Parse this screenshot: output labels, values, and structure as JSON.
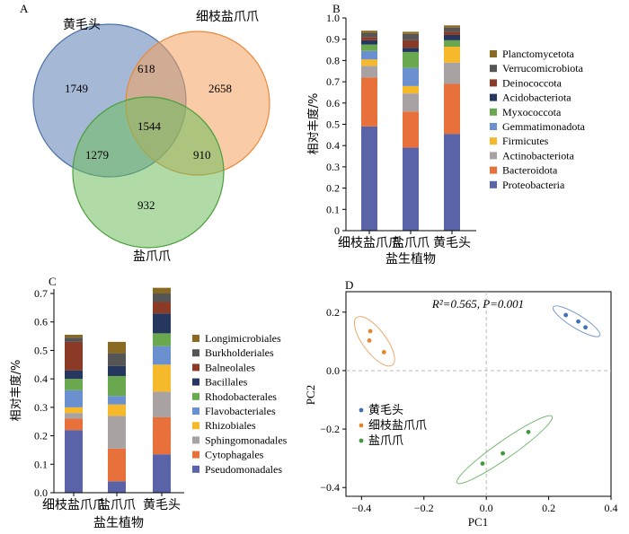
{
  "chart_data": [
    {
      "panel": "A",
      "type": "venn",
      "sets": [
        "黄毛头",
        "细枝盐爪爪",
        "盐爪爪"
      ],
      "colors": [
        "#5b7fb4",
        "#f4a35e",
        "#6fbe5c"
      ],
      "regions": [
        {
          "key": "huang_only",
          "value": "1749"
        },
        {
          "key": "xizhi_only",
          "value": "2658"
        },
        {
          "key": "yan_only",
          "value": "932"
        },
        {
          "key": "huang_xizhi",
          "value": "618"
        },
        {
          "key": "huang_yan",
          "value": "1279"
        },
        {
          "key": "xizhi_yan",
          "value": "910"
        },
        {
          "key": "all",
          "value": "1544"
        }
      ]
    },
    {
      "panel": "B",
      "type": "bar",
      "stacked": true,
      "categories": [
        "细枝盐爪爪",
        "盐爪爪",
        "黄毛头"
      ],
      "xlabel": "盐生植物",
      "ylabel": "相对丰度/%",
      "ylim": [
        0,
        1.0
      ],
      "yticks": [
        "0",
        "0.1",
        "0.2",
        "0.3",
        "0.4",
        "0.5",
        "0.6",
        "0.7",
        "0.8",
        "0.9",
        "1.0"
      ],
      "legend_position": "right",
      "series": [
        {
          "name": "Proteobacteria",
          "color": "#5a62a8",
          "values": [
            0.49,
            0.39,
            0.455
          ]
        },
        {
          "name": "Bacteroidota",
          "color": "#e8703a",
          "values": [
            0.23,
            0.17,
            0.235
          ]
        },
        {
          "name": "Actinobacteriota",
          "color": "#a8a2a2",
          "values": [
            0.055,
            0.085,
            0.1
          ]
        },
        {
          "name": "Firmicutes",
          "color": "#f6b92b",
          "values": [
            0.03,
            0.035,
            0.075
          ]
        },
        {
          "name": "Gemmatimonadota",
          "color": "#6a90cf",
          "values": [
            0.04,
            0.085,
            0.0
          ]
        },
        {
          "name": "Myxococcota",
          "color": "#6aa84f",
          "values": [
            0.03,
            0.075,
            0.03
          ]
        },
        {
          "name": "Acidobacteriota",
          "color": "#25375f",
          "values": [
            0.02,
            0.02,
            0.025
          ]
        },
        {
          "name": "Deinococcota",
          "color": "#8b3a26",
          "values": [
            0.015,
            0.035,
            0.015
          ]
        },
        {
          "name": "Verrucomicrobiota",
          "color": "#555555",
          "values": [
            0.02,
            0.03,
            0.02
          ]
        },
        {
          "name": "Planctomycetota",
          "color": "#8a6a22",
          "values": [
            0.01,
            0.01,
            0.01
          ]
        }
      ]
    },
    {
      "panel": "C",
      "type": "bar",
      "stacked": true,
      "categories": [
        "细枝盐爪爪",
        "盐爪爪",
        "黄毛头"
      ],
      "xlabel": "盐生植物",
      "ylabel": "相对丰度/%",
      "ylim": [
        0,
        0.7
      ],
      "yticks": [
        "0.0",
        "0.1",
        "0.2",
        "0.3",
        "0.4",
        "0.5",
        "0.6",
        "0.7"
      ],
      "legend_position": "right",
      "series": [
        {
          "name": "Pseudomonadales",
          "color": "#5a62a8",
          "values": [
            0.22,
            0.04,
            0.135
          ]
        },
        {
          "name": "Cytophagales",
          "color": "#e8703a",
          "values": [
            0.04,
            0.115,
            0.13
          ]
        },
        {
          "name": "Sphingomonadales",
          "color": "#a8a2a2",
          "values": [
            0.02,
            0.115,
            0.09
          ]
        },
        {
          "name": "Rhizobiales",
          "color": "#f6b92b",
          "values": [
            0.02,
            0.04,
            0.095
          ]
        },
        {
          "name": "Flavobacteriales",
          "color": "#6a90cf",
          "values": [
            0.06,
            0.03,
            0.065
          ]
        },
        {
          "name": "Rhodobacterales",
          "color": "#6aa84f",
          "values": [
            0.04,
            0.07,
            0.045
          ]
        },
        {
          "name": "Bacillales",
          "color": "#25375f",
          "values": [
            0.03,
            0.035,
            0.07
          ]
        },
        {
          "name": "Balneolales",
          "color": "#8b3a26",
          "values": [
            0.1,
            0.0,
            0.04
          ]
        },
        {
          "name": "Burkholderiales",
          "color": "#555555",
          "values": [
            0.015,
            0.045,
            0.03
          ]
        },
        {
          "name": "Longimicrobiales",
          "color": "#8a6a22",
          "values": [
            0.01,
            0.04,
            0.02
          ]
        }
      ]
    },
    {
      "panel": "D",
      "type": "scatter",
      "annotation": "R²=0.565, P=0.001",
      "xlabel": "PC1",
      "ylabel": "PC2",
      "xlim": [
        -0.45,
        0.4
      ],
      "ylim": [
        -0.43,
        0.27
      ],
      "xticks": [
        -0.4,
        -0.2,
        0.0,
        0.2,
        0.4
      ],
      "xtick_labels": [
        "−0.4",
        "−0.2",
        "0.0",
        "0.2",
        "0.4"
      ],
      "yticks": [
        -0.4,
        -0.2,
        0.0,
        0.2
      ],
      "ytick_labels": [
        "−0.4",
        "−0.2",
        "0.0",
        "0.2"
      ],
      "legend_position": "left",
      "series": [
        {
          "name": "黄毛头",
          "color": "#3f6fb4",
          "points": [
            [
              0.255,
              0.19
            ],
            [
              0.295,
              0.168
            ],
            [
              0.318,
              0.148
            ]
          ]
        },
        {
          "name": "细枝盐爪爪",
          "color": "#e6862b",
          "points": [
            [
              -0.372,
              0.135
            ],
            [
              -0.375,
              0.103
            ],
            [
              -0.328,
              0.063
            ]
          ]
        },
        {
          "name": "盐爪爪",
          "color": "#3f9a3a",
          "points": [
            [
              -0.012,
              -0.318
            ],
            [
              0.053,
              -0.283
            ],
            [
              0.135,
              -0.21
            ]
          ]
        }
      ]
    }
  ]
}
